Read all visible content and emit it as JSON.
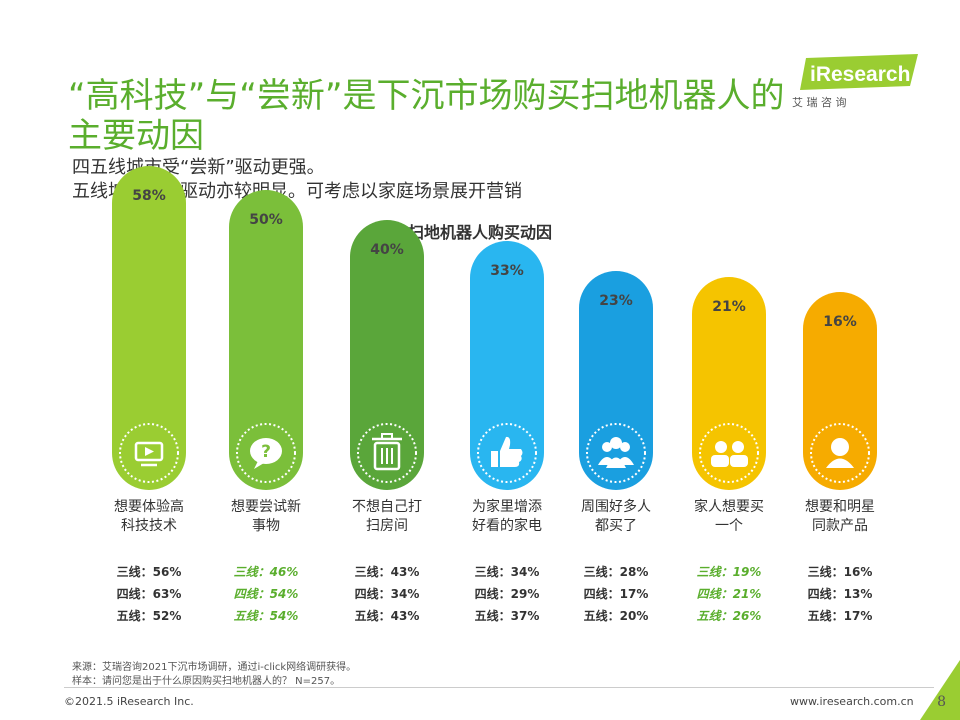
{
  "header": {
    "title": "“高科技”与“尝新”是下沉市场购买扫地机器人的主要动因",
    "subtitle_line1": "四五线城市受“尝新”驱动更强。",
    "subtitle_line2": "五线城市家人驱动亦较明显。可考虑以家庭场景展开营销"
  },
  "logo": {
    "brand": "iResearch",
    "cn": "艾 瑞 咨 询"
  },
  "colors": {
    "accent": "#5aae2d",
    "highlight_text": "#5aae2d"
  },
  "chart_data": {
    "type": "bar",
    "title": "扫地机器人购买动因",
    "ylim": [
      0,
      100
    ],
    "categories": [
      {
        "label": "想要体验高科技技术",
        "value": 58,
        "value_label": "58%",
        "color": "#9acd32",
        "icon": "tv-play-icon",
        "line3": "三线：56%",
        "line4": "四线：63%",
        "line5": "五线：52%",
        "highlight": false
      },
      {
        "label": "想要尝试新事物",
        "value": 50,
        "value_label": "50%",
        "color": "#7bbf3a",
        "icon": "question-bubble-icon",
        "line3": "三线：46%",
        "line4": "四线：54%",
        "line5": "五线：54%",
        "highlight": true
      },
      {
        "label": "不想自己打扫房间",
        "value": 40,
        "value_label": "40%",
        "color": "#5aa63a",
        "icon": "trash-can-icon",
        "line3": "三线：43%",
        "line4": "四线：34%",
        "line5": "五线：43%",
        "highlight": false
      },
      {
        "label": "为家里增添好看的家电",
        "value": 33,
        "value_label": "33%",
        "color": "#29b6f0",
        "icon": "thumbs-up-icon",
        "line3": "三线：34%",
        "line4": "四线：29%",
        "line5": "五线：37%",
        "highlight": false
      },
      {
        "label": "周围好多人都买了",
        "value": 23,
        "value_label": "23%",
        "color": "#1a9fe0",
        "icon": "group-people-icon",
        "line3": "三线：28%",
        "line4": "四线：17%",
        "line5": "五线：20%",
        "highlight": false
      },
      {
        "label": "家人想要买一个",
        "value": 21,
        "value_label": "21%",
        "color": "#f5c400",
        "icon": "family-icon",
        "line3": "三线：19%",
        "line4": "四线：21%",
        "line5": "五线：26%",
        "highlight": true
      },
      {
        "label": "想要和明星同款产品",
        "value": 16,
        "value_label": "16%",
        "color": "#f6ab00",
        "icon": "star-person-icon",
        "line3": "三线：16%",
        "line4": "四线：13%",
        "line5": "五线：17%",
        "highlight": false
      }
    ]
  },
  "footer": {
    "source": "来源：艾瑞咨询2021下沉市场调研，通过i-click网络调研获得。",
    "sample": "样本：请问您是出于什么原因购买扫地机器人的？ N=257。",
    "copyright": "©2021.5 iResearch Inc.",
    "site": "www.iresearch.com.cn",
    "page": "8"
  }
}
